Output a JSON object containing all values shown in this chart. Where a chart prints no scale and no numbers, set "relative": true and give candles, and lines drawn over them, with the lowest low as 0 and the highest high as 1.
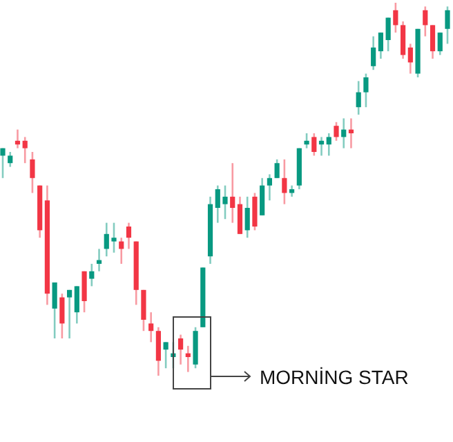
{
  "chart_data": {
    "type": "candlestick",
    "relative": true,
    "categories": [
      null,
      null,
      null,
      null,
      null,
      null,
      null,
      null,
      null,
      null,
      null,
      null,
      null,
      null,
      null,
      null,
      null,
      null,
      null,
      null,
      null,
      null,
      null,
      null,
      null,
      null,
      null,
      null,
      null,
      null,
      null,
      null,
      null,
      null,
      null,
      null,
      null,
      null,
      null,
      null,
      null,
      null,
      null,
      null,
      null,
      null,
      null,
      null,
      null,
      null,
      null,
      null,
      null,
      null,
      null,
      null,
      null,
      null,
      null,
      null,
      null
    ],
    "colors": [
      "#089981",
      "#089981",
      "#f23645",
      "#f23645",
      "#f23645",
      "#f23645",
      "#f23645",
      "#089981",
      "#f23645",
      "#089981",
      "#089981",
      "#f23645",
      "#089981",
      "#089981",
      "#089981",
      "#089981",
      "#f23645",
      "#f23645",
      "#f23645",
      "#f23645",
      "#f23645",
      "#f23645",
      "#089981",
      "#089981",
      "#f23645",
      "#f23645",
      "#089981",
      "#089981",
      "#089981",
      "#089981",
      "#089981",
      "#f23645",
      "#f23645",
      "#089981",
      "#f23645",
      "#089981",
      "#089981",
      "#089981",
      "#f23645",
      "#089981",
      "#089981",
      "#089981",
      "#f23645",
      "#089981",
      "#089981",
      "#f23645",
      "#089981",
      "#f23645",
      "#089981",
      "#089981",
      "#089981",
      "#089981",
      "#089981",
      "#f23645",
      "#f23645",
      "#f23645",
      "#089981",
      "#f23645",
      "#f23645",
      "#089981",
      "#089981"
    ],
    "ohlc": [
      [
        0.59,
        0.61,
        0.53,
        0.61
      ],
      [
        0.57,
        0.6,
        0.56,
        0.59
      ],
      [
        0.63,
        0.66,
        0.61,
        0.62
      ],
      [
        0.63,
        0.64,
        0.57,
        0.61
      ],
      [
        0.58,
        0.6,
        0.49,
        0.53
      ],
      [
        0.51,
        0.51,
        0.37,
        0.39
      ],
      [
        0.47,
        0.51,
        0.19,
        0.22
      ],
      [
        0.18,
        0.25,
        0.1,
        0.25
      ],
      [
        0.21,
        0.22,
        0.1,
        0.14
      ],
      [
        0.21,
        0.23,
        0.1,
        0.23
      ],
      [
        0.17,
        0.24,
        0.14,
        0.24
      ],
      [
        0.28,
        0.28,
        0.17,
        0.2
      ],
      [
        0.26,
        0.3,
        0.24,
        0.28
      ],
      [
        0.3,
        0.34,
        0.28,
        0.31
      ],
      [
        0.34,
        0.41,
        0.32,
        0.38
      ],
      [
        0.36,
        0.41,
        0.33,
        0.37
      ],
      [
        0.36,
        0.37,
        0.3,
        0.34
      ],
      [
        0.4,
        0.41,
        0.34,
        0.37
      ],
      [
        0.36,
        0.36,
        0.19,
        0.23
      ],
      [
        0.23,
        0.23,
        0.12,
        0.15
      ],
      [
        0.14,
        0.17,
        0.09,
        0.12
      ],
      [
        0.12,
        0.13,
        0,
        0.04
      ],
      [
        0.07,
        0.09,
        0.02,
        0.09
      ],
      [
        0.05,
        0.09,
        0.02,
        0.06
      ],
      [
        0.1,
        0.11,
        0.03,
        0.07
      ],
      [
        0.06,
        0.08,
        0.01,
        0.05
      ],
      [
        0.03,
        0.13,
        0.02,
        0.12
      ],
      [
        0.13,
        0.29,
        0.13,
        0.29
      ],
      [
        0.32,
        0.48,
        0.3,
        0.46
      ],
      [
        0.45,
        0.51,
        0.41,
        0.5
      ],
      [
        0.46,
        0.51,
        0.42,
        0.48
      ],
      [
        0.48,
        0.57,
        0.41,
        0.45
      ],
      [
        0.46,
        0.48,
        0.38,
        0.38
      ],
      [
        0.39,
        0.48,
        0.37,
        0.45
      ],
      [
        0.48,
        0.49,
        0.39,
        0.4
      ],
      [
        0.43,
        0.53,
        0.43,
        0.51
      ],
      [
        0.51,
        0.54,
        0.47,
        0.53
      ],
      [
        0.53,
        0.58,
        0.53,
        0.57
      ],
      [
        0.53,
        0.58,
        0.46,
        0.49
      ],
      [
        0.49,
        0.51,
        0.48,
        0.5
      ],
      [
        0.51,
        0.61,
        0.5,
        0.61
      ],
      [
        0.62,
        0.65,
        0.61,
        0.63
      ],
      [
        0.64,
        0.65,
        0.59,
        0.6
      ],
      [
        0.62,
        0.64,
        0.59,
        0.63
      ],
      [
        0.62,
        0.65,
        0.59,
        0.64
      ],
      [
        0.67,
        0.68,
        0.63,
        0.64
      ],
      [
        0.64,
        0.69,
        0.61,
        0.66
      ],
      [
        0.66,
        0.69,
        0.61,
        0.65
      ],
      [
        0.72,
        0.79,
        0.7,
        0.76
      ],
      [
        0.76,
        0.81,
        0.72,
        0.8
      ],
      [
        0.83,
        0.91,
        0.82,
        0.88
      ],
      [
        0.87,
        0.92,
        0.85,
        0.92
      ],
      [
        0.9,
        0.96,
        0.87,
        0.96
      ],
      [
        0.98,
        1,
        0.92,
        0.94
      ],
      [
        0.94,
        0.95,
        0.85,
        0.86
      ],
      [
        0.88,
        0.89,
        0.81,
        0.84
      ],
      [
        0.81,
        0.93,
        0.8,
        0.93
      ],
      [
        0.98,
        0.99,
        0.91,
        0.94
      ],
      [
        0.94,
        0.94,
        0.85,
        0.87
      ],
      [
        0.87,
        0.92,
        0.86,
        0.92
      ],
      [
        0.93,
        0.99,
        0.89,
        0.98
      ]
    ],
    "annotations": [
      "MORNİNG STAR"
    ]
  }
}
